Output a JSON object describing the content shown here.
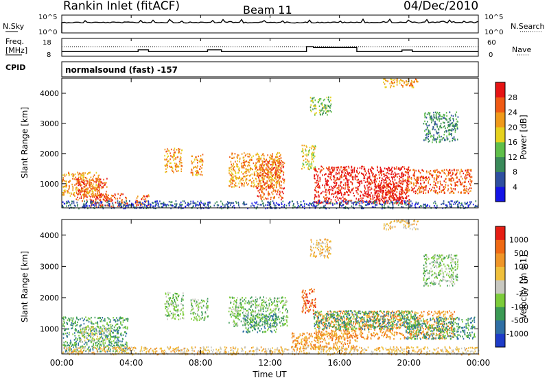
{
  "header": {
    "station": "Rankin Inlet (fitACF)",
    "beam": "Beam 11",
    "date": "04/Dec/2010"
  },
  "nsky": {
    "label": "N.Sky",
    "right_label": "N.Search",
    "y_ticks": [
      "10^5",
      "10^0"
    ]
  },
  "freq": {
    "label_1": "Freq.",
    "label_2": "[MHz]",
    "right_label": "Nave",
    "left_ticks": [
      "18",
      "8"
    ],
    "right_ticks": [
      "60",
      "0"
    ]
  },
  "cpid": {
    "label": "CPID",
    "text": "normalsound (fast) -157"
  },
  "x_axis": {
    "label": "Time UT",
    "ticks": [
      "00:00",
      "04:00",
      "08:00",
      "12:00",
      "16:00",
      "20:00",
      "00:00"
    ]
  },
  "power_panel": {
    "ylabel": "Slant Range [km]",
    "y_ticks": [
      "1000",
      "2000",
      "3000",
      "4000"
    ],
    "colorbar_label": "Power [dB]",
    "colorbar_ticks": [
      "4",
      "8",
      "12",
      "16",
      "20",
      "24",
      "28"
    ],
    "colors": [
      "#1414e6",
      "#2e4fa0",
      "#3a8a5a",
      "#5fbf4a",
      "#e6d21e",
      "#f09a1a",
      "#f05a14",
      "#e61414"
    ]
  },
  "velocity_panel": {
    "ylabel": "Slant Range [km]",
    "y_ticks": [
      "1000",
      "2000",
      "3000",
      "4000"
    ],
    "colorbar_label": "Velocity [m s-1]",
    "colorbar_ticks": [
      "1000",
      "500",
      "100",
      "25",
      "-25",
      "-100",
      "-500",
      "-1000"
    ],
    "colors": [
      "#1e3cc8",
      "#2f6fa5",
      "#3b9a55",
      "#7ccc3a",
      "#c8c8c0",
      "#f0c03c",
      "#f09628",
      "#f06a14",
      "#e61e14"
    ]
  },
  "chart_data": {
    "type": "heatmap",
    "x_range_hours": [
      0,
      24
    ],
    "y_range_km": [
      200,
      4500
    ],
    "freq_mhz": {
      "ylim": [
        8,
        18
      ],
      "steps": [
        {
          "t": 0,
          "v": 10.6
        },
        {
          "t": 4.4,
          "v": 11.6
        },
        {
          "t": 5.0,
          "v": 10.6
        },
        {
          "t": 8.4,
          "v": 11.6
        },
        {
          "t": 9.2,
          "v": 10.6
        },
        {
          "t": 14.1,
          "v": 13.4
        },
        {
          "t": 14.5,
          "v": 12.9
        },
        {
          "t": 17.0,
          "v": 10.6
        },
        {
          "t": 19.6,
          "v": 11.5
        },
        {
          "t": 20.2,
          "v": 10.6
        },
        {
          "t": 24,
          "v": 10.6
        }
      ]
    },
    "scatter_regions_power": [
      {
        "t0": 0.0,
        "t1": 2.2,
        "r0": 600,
        "r1": 1400,
        "level": 5
      },
      {
        "t0": 0.8,
        "t1": 2.6,
        "r0": 450,
        "r1": 1200,
        "level": 6
      },
      {
        "t0": 1.6,
        "t1": 3.8,
        "r0": 250,
        "r1": 700,
        "level": 6
      },
      {
        "t0": 4.2,
        "t1": 5.0,
        "r0": 250,
        "r1": 650,
        "level": 6
      },
      {
        "t0": 5.9,
        "t1": 6.9,
        "r0": 1400,
        "r1": 2200,
        "level": 5
      },
      {
        "t0": 7.4,
        "t1": 8.1,
        "r0": 1300,
        "r1": 2000,
        "level": 5
      },
      {
        "t0": 9.6,
        "t1": 12.6,
        "r0": 900,
        "r1": 2050,
        "level": 5
      },
      {
        "t0": 11.2,
        "t1": 12.8,
        "r0": 500,
        "r1": 1800,
        "level": 6
      },
      {
        "t0": 13.8,
        "t1": 14.6,
        "r0": 1500,
        "r1": 2300,
        "level": 4
      },
      {
        "t0": 14.5,
        "t1": 20.0,
        "r0": 350,
        "r1": 1600,
        "level": 7
      },
      {
        "t0": 17.6,
        "t1": 19.6,
        "r0": 350,
        "r1": 1100,
        "level": 7
      },
      {
        "t0": 19.8,
        "t1": 23.6,
        "r0": 700,
        "r1": 1500,
        "level": 6
      },
      {
        "t0": 14.3,
        "t1": 15.5,
        "r0": 3300,
        "r1": 3900,
        "level": 3
      },
      {
        "t0": 20.8,
        "t1": 22.8,
        "r0": 2400,
        "r1": 3400,
        "level": 2
      },
      {
        "t0": 18.5,
        "t1": 20.5,
        "r0": 4200,
        "r1": 4500,
        "level": 5
      },
      {
        "t0": 0.0,
        "t1": 24.0,
        "r0": 200,
        "r1": 450,
        "level": 1
      }
    ],
    "scatter_regions_velocity": [
      {
        "t0": 0.0,
        "t1": 3.8,
        "r0": 300,
        "r1": 1400,
        "level": 2
      },
      {
        "t0": 1.0,
        "t1": 2.8,
        "r0": 600,
        "r1": 1100,
        "level": 4
      },
      {
        "t0": 5.9,
        "t1": 7.0,
        "r0": 1300,
        "r1": 2200,
        "level": 3
      },
      {
        "t0": 7.4,
        "t1": 8.4,
        "r0": 1300,
        "r1": 2000,
        "level": 3
      },
      {
        "t0": 9.6,
        "t1": 13.0,
        "r0": 1100,
        "r1": 2050,
        "level": 3
      },
      {
        "t0": 10.4,
        "t1": 12.4,
        "r0": 900,
        "r1": 1500,
        "level": 2
      },
      {
        "t0": 13.8,
        "t1": 14.6,
        "r0": 1500,
        "r1": 2300,
        "level": 7
      },
      {
        "t0": 13.2,
        "t1": 17.0,
        "r0": 350,
        "r1": 900,
        "level": 6
      },
      {
        "t0": 14.6,
        "t1": 22.6,
        "r0": 700,
        "r1": 1600,
        "level": 6
      },
      {
        "t0": 14.5,
        "t1": 20.5,
        "r0": 1000,
        "r1": 1600,
        "level": 2
      },
      {
        "t0": 19.8,
        "t1": 23.8,
        "r0": 700,
        "r1": 1400,
        "level": 2
      },
      {
        "t0": 14.3,
        "t1": 15.5,
        "r0": 3300,
        "r1": 3900,
        "level": 5
      },
      {
        "t0": 20.8,
        "t1": 22.8,
        "r0": 2400,
        "r1": 3400,
        "level": 3
      },
      {
        "t0": 18.5,
        "t1": 20.5,
        "r0": 4200,
        "r1": 4500,
        "level": 5
      },
      {
        "t0": 0.0,
        "t1": 24.0,
        "r0": 200,
        "r1": 450,
        "level": 5
      }
    ]
  }
}
